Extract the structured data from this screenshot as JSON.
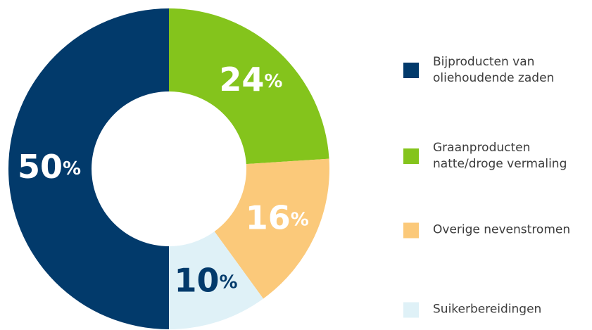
{
  "chart_data": {
    "type": "donut",
    "categories": [
      "Bijproducten van\noliehoudende zaden",
      "Graanproducten\nnatte/droge vermaling",
      "Overige nevenstromen",
      "Suikerbereidingen"
    ],
    "values": [
      50,
      24,
      16,
      10
    ],
    "value_labels": [
      "50%",
      "24%",
      "16%",
      "10%"
    ],
    "colors": [
      "#023a6b",
      "#84c41c",
      "#fbc97a",
      "#dff1f7"
    ],
    "value_label_colors": [
      "#ffffff",
      "#ffffff",
      "#ffffff",
      "#023a6b"
    ],
    "legend": "right"
  }
}
